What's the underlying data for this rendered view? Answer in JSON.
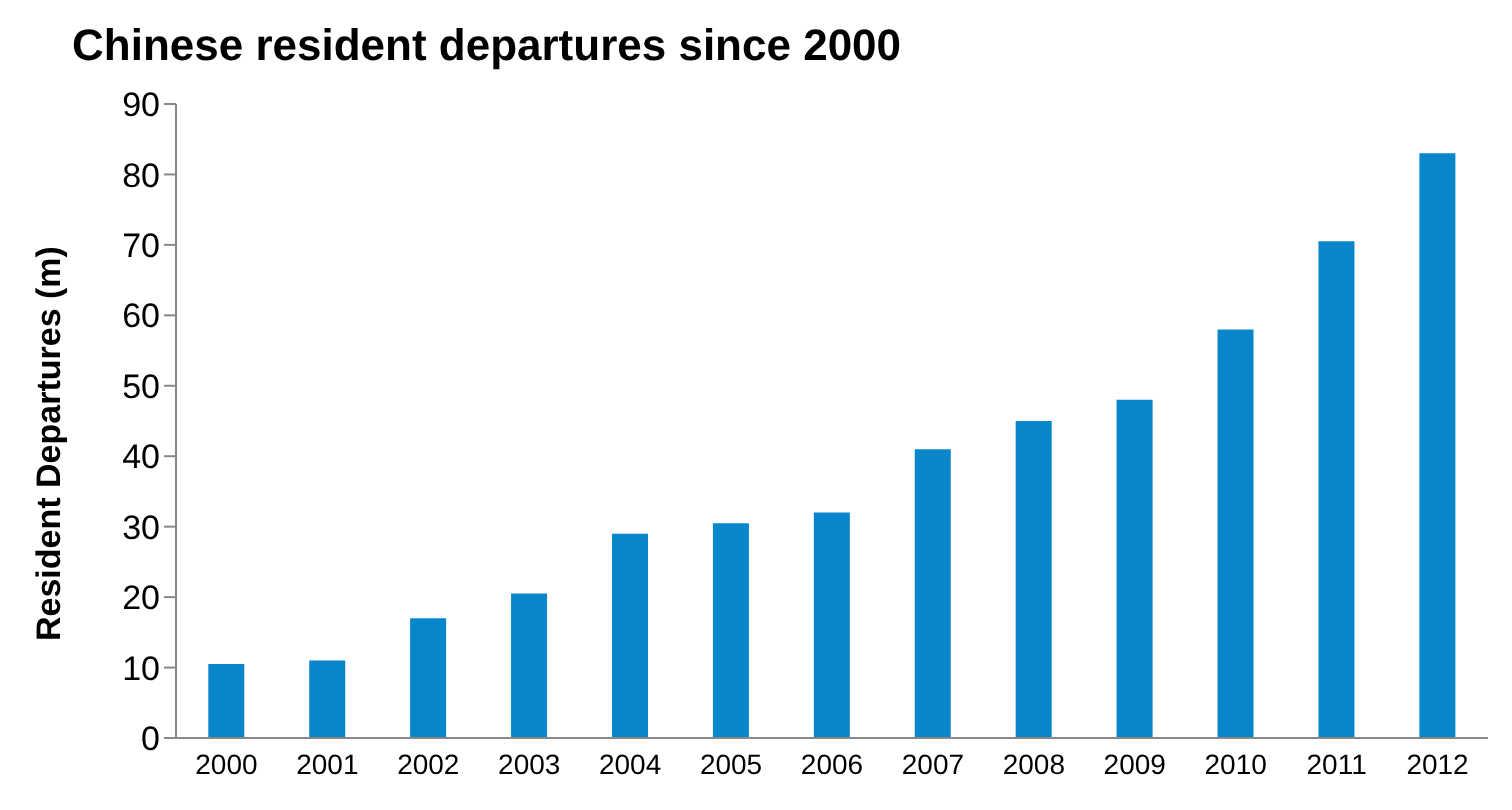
{
  "chart_data": {
    "type": "bar",
    "title": "Chinese resident departures since 2000",
    "ylabel": "Resident Departures (m)",
    "categories": [
      "2000",
      "2001",
      "2002",
      "2003",
      "2004",
      "2005",
      "2006",
      "2007",
      "2008",
      "2009",
      "2010",
      "2011",
      "2012"
    ],
    "values": [
      10.5,
      11,
      17,
      20.5,
      29,
      30.5,
      32,
      41,
      45,
      48,
      58,
      70.5,
      83
    ],
    "color": "#0786cb",
    "ylim": [
      0,
      90
    ],
    "yticks": [
      0,
      10,
      20,
      30,
      40,
      50,
      60,
      70,
      80,
      90
    ],
    "grid": false,
    "legend": false
  }
}
